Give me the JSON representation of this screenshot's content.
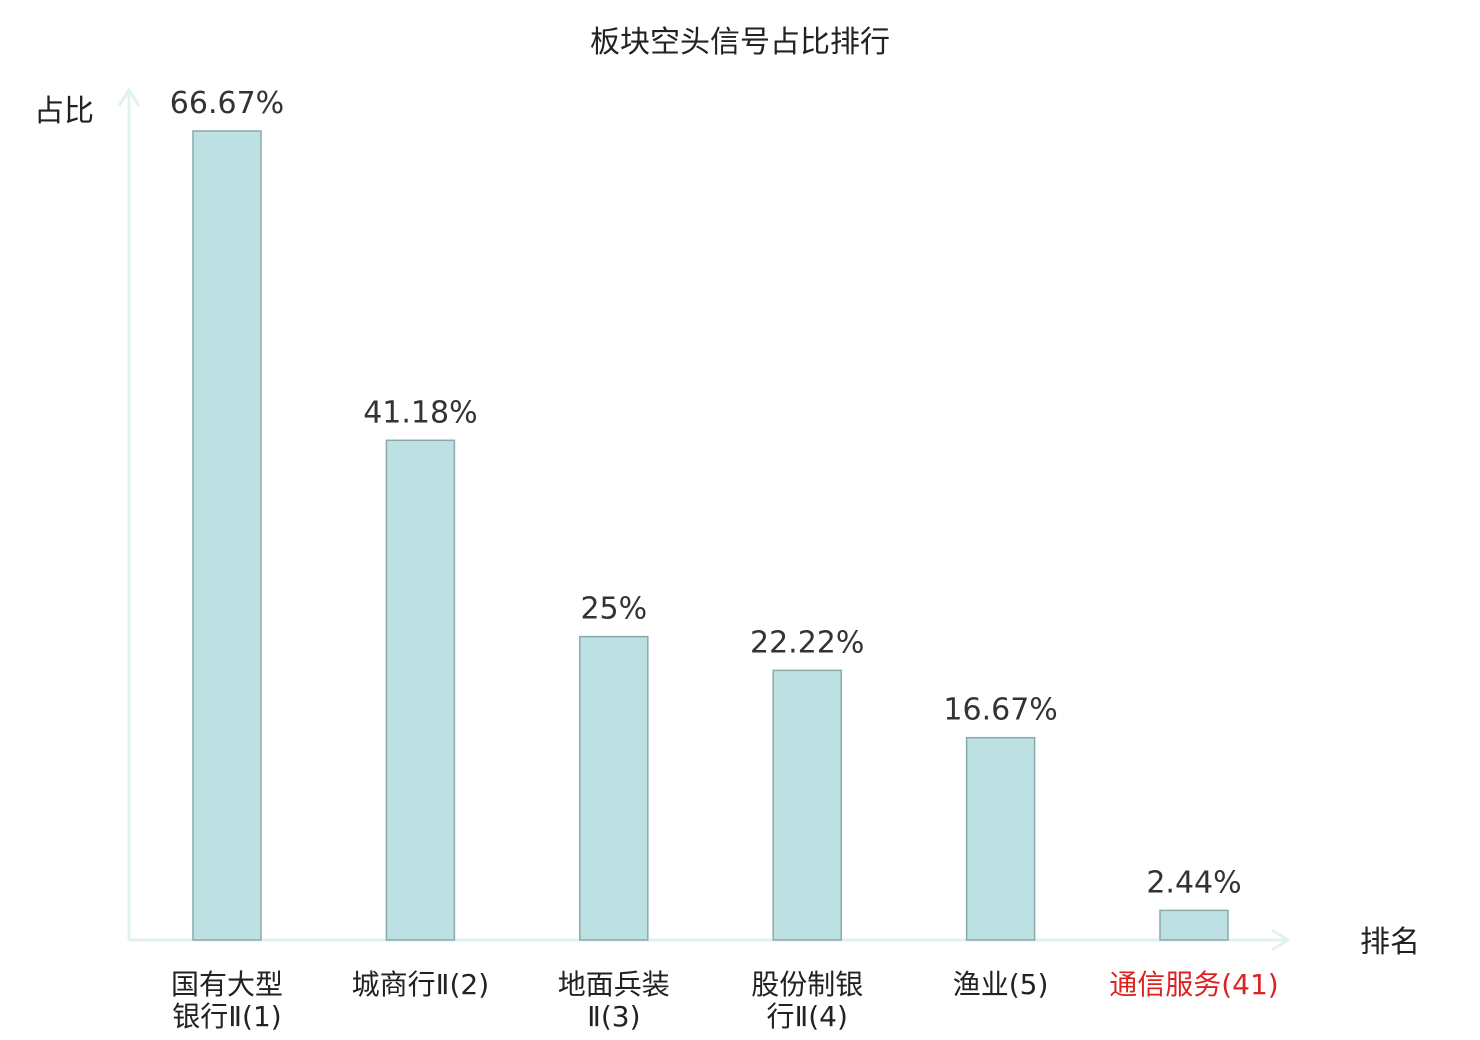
{
  "chart_data": {
    "type": "bar",
    "title": "板块空头信号占比排行",
    "ylabel": "占比",
    "xlabel": "排名",
    "ylim": [
      0,
      70
    ],
    "grid": false,
    "unit": "%",
    "categories": [
      {
        "lines": [
          "国有大型",
          "银行Ⅱ(1)"
        ],
        "name": "国有大型银行Ⅱ(1)",
        "value": 66.67,
        "label": "66.67%",
        "highlight": false
      },
      {
        "lines": [
          "城商行Ⅱ(2)"
        ],
        "name": "城商行Ⅱ(2)",
        "value": 41.18,
        "label": "41.18%",
        "highlight": false
      },
      {
        "lines": [
          "地面兵装",
          "Ⅱ(3)"
        ],
        "name": "地面兵装Ⅱ(3)",
        "value": 25,
        "label": "25%",
        "highlight": false
      },
      {
        "lines": [
          "股份制银",
          "行Ⅱ(4)"
        ],
        "name": "股份制银行Ⅱ(4)",
        "value": 22.22,
        "label": "22.22%",
        "highlight": false
      },
      {
        "lines": [
          "渔业(5)"
        ],
        "name": "渔业(5)",
        "value": 16.67,
        "label": "16.67%",
        "highlight": false
      },
      {
        "lines": [
          "通信服务(41)"
        ],
        "name": "通信服务(41)",
        "value": 2.44,
        "label": "2.44%",
        "highlight": true
      }
    ],
    "colors": {
      "bar_fill": "#bde0e2",
      "bar_stroke": "#8aa9ab",
      "axis": "#e0f2f0",
      "highlight_text": "#dd2222"
    }
  }
}
